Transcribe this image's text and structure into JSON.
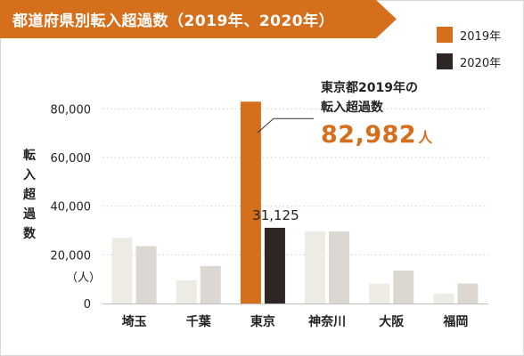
{
  "banner": {
    "title": "都道府県別転入超過数（2019年、2020年）",
    "color": "#d66f1c"
  },
  "legend": [
    {
      "label": "2019年",
      "color": "#d66f1c"
    },
    {
      "label": "2020年",
      "color": "#2e2624"
    }
  ],
  "yaxis": {
    "label_chars": [
      "転",
      "入",
      "超",
      "過",
      "数"
    ],
    "unit": "（人）"
  },
  "callout": {
    "line1": "東京都2019年の",
    "line2": "転入超過数",
    "value": "82,982",
    "unit": "人"
  },
  "chart_data": {
    "type": "bar",
    "title": "都道府県別転入超過数（2019年、2020年）",
    "ylabel": "転入超過数",
    "yunit": "（人）",
    "ylim": [
      0,
      86000
    ],
    "yticks": [
      0,
      20000,
      40000,
      60000,
      80000
    ],
    "ytick_labels": [
      "0",
      "20,000",
      "40,000",
      "60,000",
      "80,000"
    ],
    "grid": true,
    "legend_position": "top-right",
    "categories": [
      "埼玉",
      "千葉",
      "東京",
      "神奈川",
      "大阪",
      "福岡"
    ],
    "series": [
      {
        "name": "2019年",
        "values": [
          27000,
          9500,
          82982,
          29600,
          8200,
          4000
        ],
        "colors": [
          "#eeeae4",
          "#eeeae4",
          "#d66f1c",
          "#eeeae4",
          "#eeeae4",
          "#eeeae4"
        ]
      },
      {
        "name": "2020年",
        "values": [
          23600,
          15400,
          31125,
          29600,
          13500,
          8200
        ],
        "colors": [
          "#dcd7d0",
          "#dcd7d0",
          "#2e2624",
          "#dcd7d0",
          "#dcd7d0",
          "#dcd7d0"
        ]
      }
    ],
    "data_labels": [
      {
        "category": "東京",
        "series": "2020年",
        "text": "31,125"
      }
    ]
  }
}
